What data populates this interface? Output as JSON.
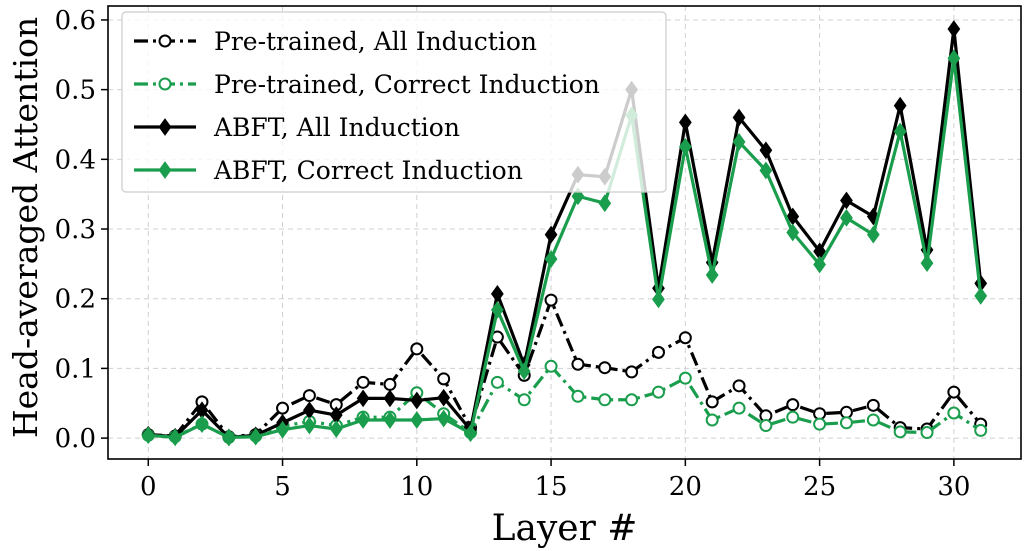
{
  "chart_data": {
    "type": "line",
    "xlabel": "Layer #",
    "ylabel": "Head-averaged Attention",
    "xlim": [
      -1.5,
      32.5
    ],
    "ylim": [
      -0.03,
      0.62
    ],
    "xticks": [
      0,
      5,
      10,
      15,
      20,
      25,
      30
    ],
    "xtick_labels": [
      "0",
      "5",
      "10",
      "15",
      "20",
      "25",
      "30"
    ],
    "yticks": [
      0.0,
      0.1,
      0.2,
      0.3,
      0.4,
      0.5,
      0.6
    ],
    "ytick_labels": [
      "0.0",
      "0.1",
      "0.2",
      "0.3",
      "0.4",
      "0.5",
      "0.6"
    ],
    "grid": true,
    "legend_position": "top-left",
    "x": [
      0,
      1,
      2,
      3,
      4,
      5,
      6,
      7,
      8,
      9,
      10,
      11,
      12,
      13,
      14,
      15,
      16,
      17,
      18,
      19,
      20,
      21,
      22,
      23,
      24,
      25,
      26,
      27,
      28,
      29,
      30,
      31
    ],
    "series": [
      {
        "name": "Pre-trained, All Induction",
        "color": "#000000",
        "line_style": "dashdot",
        "marker": "open-circle",
        "values": [
          0.005,
          0.003,
          0.052,
          0.002,
          0.005,
          0.043,
          0.061,
          0.048,
          0.08,
          0.077,
          0.128,
          0.085,
          0.015,
          0.145,
          0.09,
          0.198,
          0.106,
          0.101,
          0.095,
          0.123,
          0.144,
          0.052,
          0.075,
          0.032,
          0.048,
          0.035,
          0.037,
          0.047,
          0.015,
          0.013,
          0.066,
          0.02
        ]
      },
      {
        "name": "Pre-trained, Correct Induction",
        "color": "#1a9e4d",
        "line_style": "dashdot",
        "marker": "open-circle",
        "values": [
          0.004,
          0.002,
          0.02,
          0.001,
          0.003,
          0.017,
          0.024,
          0.018,
          0.03,
          0.03,
          0.065,
          0.035,
          0.008,
          0.08,
          0.055,
          0.103,
          0.06,
          0.055,
          0.055,
          0.066,
          0.086,
          0.026,
          0.043,
          0.018,
          0.03,
          0.02,
          0.022,
          0.026,
          0.009,
          0.008,
          0.036,
          0.011
        ]
      },
      {
        "name": "ABFT, All Induction",
        "color": "#000000",
        "line_style": "solid",
        "marker": "diamond",
        "values": [
          0.005,
          0.002,
          0.04,
          0.001,
          0.004,
          0.022,
          0.04,
          0.033,
          0.057,
          0.057,
          0.054,
          0.058,
          0.012,
          0.207,
          0.105,
          0.292,
          0.378,
          0.375,
          0.5,
          0.215,
          0.453,
          0.252,
          0.46,
          0.413,
          0.318,
          0.268,
          0.341,
          0.318,
          0.477,
          0.27,
          0.587,
          0.222
        ]
      },
      {
        "name": "ABFT, Correct Induction",
        "color": "#1a9e4d",
        "line_style": "solid",
        "marker": "diamond",
        "values": [
          0.004,
          0.001,
          0.02,
          0.001,
          0.002,
          0.012,
          0.018,
          0.013,
          0.026,
          0.026,
          0.026,
          0.028,
          0.007,
          0.184,
          0.096,
          0.257,
          0.347,
          0.337,
          0.463,
          0.199,
          0.418,
          0.234,
          0.425,
          0.384,
          0.295,
          0.249,
          0.316,
          0.292,
          0.44,
          0.251,
          0.545,
          0.204
        ]
      }
    ]
  }
}
